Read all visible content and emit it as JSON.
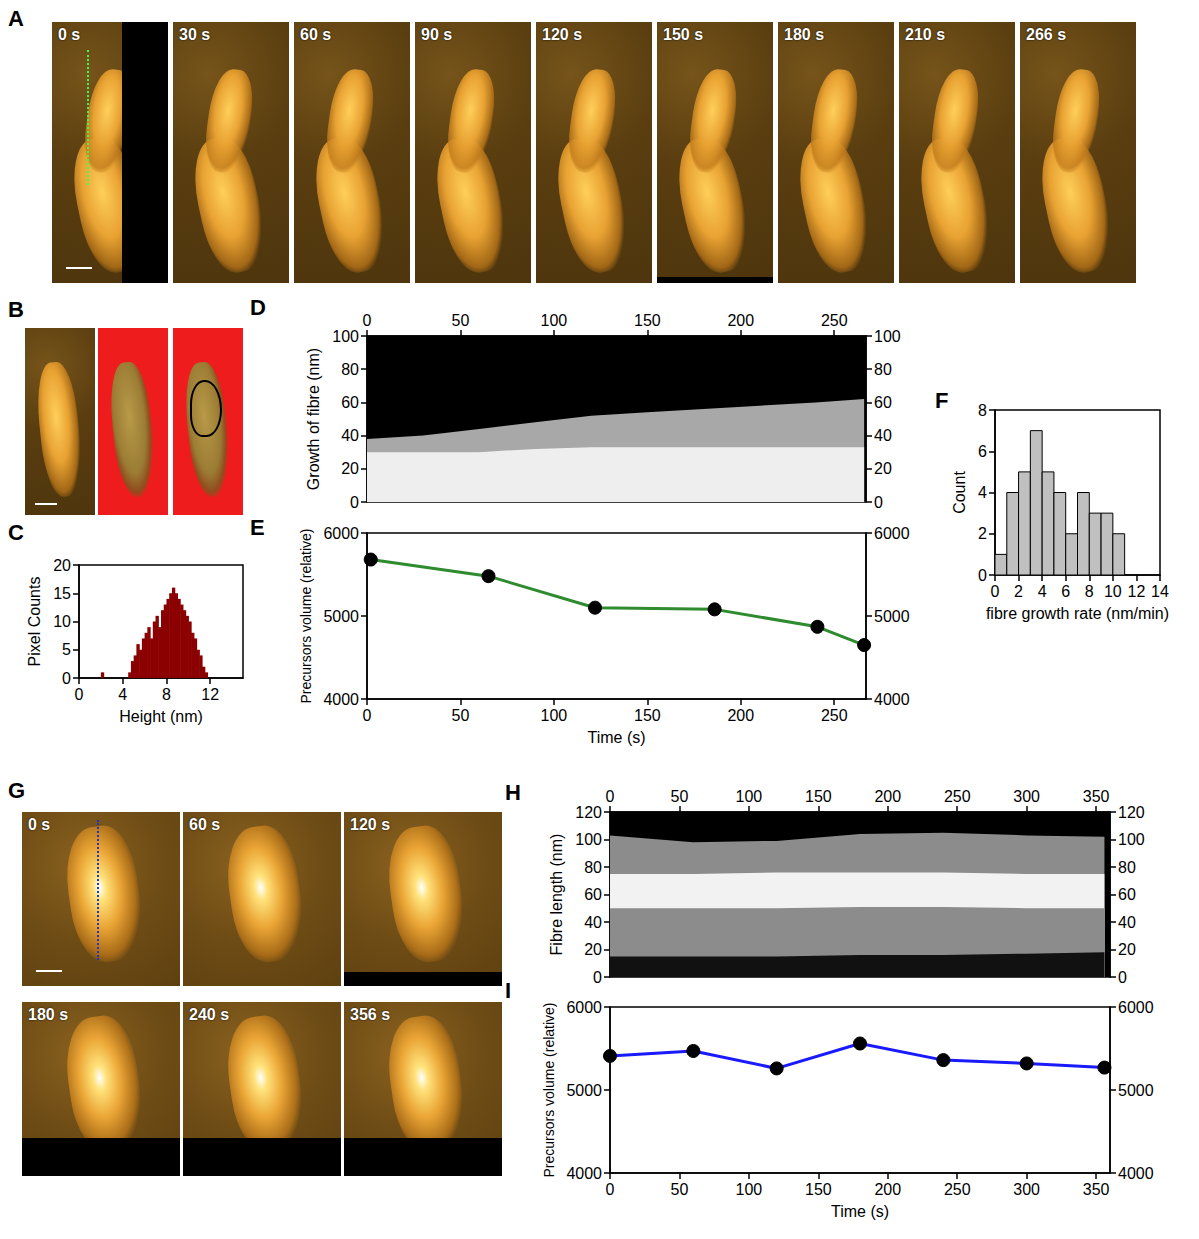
{
  "images": [
    {
      "letter": "A",
      "frames": [
        "0 s",
        "30 s",
        "60 s",
        "90 s",
        "120 s",
        "150 s",
        "180 s",
        "210 s",
        "266 s"
      ]
    },
    {
      "letter": "B",
      "count": 3
    },
    {
      "letter": "G",
      "frames": [
        "0 s",
        "60 s",
        "120 s",
        "180 s",
        "240 s",
        "356 s"
      ]
    }
  ],
  "chart_data": [
    {
      "letter": "C",
      "type": "histogram",
      "x_label": "Height (nm)",
      "y_label": "Pixel Counts",
      "color": "#8b0000",
      "bins": [
        1.75,
        2.0,
        2.25,
        2.5,
        2.75,
        3.0,
        3.25,
        3.5,
        3.75,
        4.0,
        4.25,
        4.5,
        4.75,
        5.0,
        5.25,
        5.5,
        5.75,
        6.0,
        6.25,
        6.5,
        6.75,
        7.0,
        7.25,
        7.5,
        7.75,
        8.0,
        8.25,
        8.5,
        8.75,
        9.0,
        9.25,
        9.5,
        9.75,
        10.0,
        10.25,
        10.5,
        10.75,
        11.0,
        11.25,
        11.5,
        11.75
      ],
      "counts": [
        0,
        1,
        0,
        0,
        0,
        0,
        0,
        0,
        0,
        0,
        0,
        1,
        3,
        4,
        6,
        5,
        7,
        8,
        9,
        7,
        10,
        11,
        9,
        12,
        13,
        14,
        15,
        16,
        15,
        14,
        13,
        12,
        11,
        10,
        8,
        7,
        5,
        4,
        2,
        1
      ],
      "xlim": [
        0,
        15
      ],
      "xticks": [
        0,
        4,
        8,
        12
      ],
      "ylim": [
        0,
        20
      ],
      "yticks": [
        0,
        5,
        10,
        15,
        20
      ]
    },
    {
      "letter": "D",
      "type": "area",
      "y_label": "Growth of fibre (nm)",
      "x": [
        0,
        30,
        60,
        90,
        120,
        150,
        180,
        210,
        240,
        266
      ],
      "series": [
        {
          "color": "#a8a8a8",
          "values": [
            38,
            40,
            44,
            48,
            52,
            54,
            56,
            58,
            60,
            62
          ]
        },
        {
          "color": "#eeeeee",
          "values": [
            30,
            30,
            30,
            32,
            33,
            33,
            33,
            33,
            33,
            33
          ]
        }
      ],
      "xlim": [
        0,
        267
      ],
      "xticks": [
        0,
        50,
        100,
        150,
        200,
        250
      ],
      "ylim": [
        0,
        100
      ],
      "yticks": [
        0,
        20,
        40,
        60,
        80,
        100
      ],
      "y2lim": [
        0,
        100
      ],
      "y2ticks": [
        0,
        20,
        40,
        60,
        80,
        100
      ]
    },
    {
      "letter": "E",
      "type": "line",
      "x_label": "Time (s)",
      "y_label": "Precursors volume (relative)",
      "x": [
        2,
        65,
        122,
        186,
        241,
        266
      ],
      "series": [
        {
          "color": "#2e8b2e",
          "marker": "circle",
          "values": [
            5680,
            5480,
            5100,
            5080,
            4870,
            4650
          ]
        }
      ],
      "xlim": [
        0,
        267
      ],
      "xticks": [
        0,
        50,
        100,
        150,
        200,
        250
      ],
      "ylim": [
        4000,
        6000
      ],
      "yticks": [
        4000,
        5000,
        6000
      ],
      "y2lim": [
        4000,
        6000
      ],
      "y2ticks": [
        4000,
        5000,
        6000
      ]
    },
    {
      "letter": "F",
      "type": "histogram",
      "x_label": "fibre growth rate (nm/min)",
      "y_label": "Count",
      "color": "#c0c0c0",
      "bins": [
        0,
        1,
        2,
        3,
        4,
        5,
        6,
        7,
        8,
        9,
        10,
        11
      ],
      "counts": [
        1,
        4,
        5,
        7,
        5,
        4,
        2,
        4,
        3,
        3,
        2
      ],
      "xlim": [
        0,
        14
      ],
      "xticks": [
        0,
        2,
        4,
        6,
        8,
        10,
        12,
        14
      ],
      "ylim": [
        0,
        8
      ],
      "yticks": [
        0,
        2,
        4,
        6,
        8
      ]
    },
    {
      "letter": "H",
      "type": "area",
      "y_label": "Fibre length (nm)",
      "x": [
        0,
        60,
        120,
        180,
        240,
        300,
        356
      ],
      "series": [
        {
          "color": "#8c8c8c",
          "values": [
            103,
            98,
            99,
            104,
            105,
            103,
            102
          ]
        },
        {
          "color": "#f2f2f2",
          "values": [
            75,
            75,
            76,
            76,
            76,
            75,
            75
          ]
        },
        {
          "color": "#8c8c8c",
          "values": [
            50,
            50,
            50,
            51,
            51,
            50,
            50
          ]
        },
        {
          "color": "#111111",
          "values": [
            15,
            15,
            15,
            16,
            16,
            17,
            18
          ]
        }
      ],
      "xlim": [
        0,
        360
      ],
      "xticks": [
        0,
        50,
        100,
        150,
        200,
        250,
        300,
        350
      ],
      "ylim": [
        0,
        120
      ],
      "yticks": [
        0,
        20,
        40,
        60,
        80,
        100,
        120
      ],
      "y2lim": [
        0,
        120
      ],
      "y2ticks": [
        0,
        20,
        40,
        60,
        80,
        100,
        120
      ]
    },
    {
      "letter": "I",
      "type": "line",
      "x_label": "Time (s)",
      "y_label": "Precursors volume (relative)",
      "x": [
        0,
        60,
        120,
        180,
        240,
        300,
        356
      ],
      "series": [
        {
          "color": "#1a1aff",
          "marker": "circle",
          "values": [
            5410,
            5470,
            5260,
            5560,
            5360,
            5320,
            5270
          ]
        }
      ],
      "xlim": [
        0,
        360
      ],
      "xticks": [
        0,
        50,
        100,
        150,
        200,
        250,
        300,
        350
      ],
      "ylim": [
        4000,
        6000
      ],
      "yticks": [
        4000,
        5000,
        6000
      ],
      "y2lim": [
        4000,
        6000
      ],
      "y2ticks": [
        4000,
        5000,
        6000
      ]
    }
  ]
}
